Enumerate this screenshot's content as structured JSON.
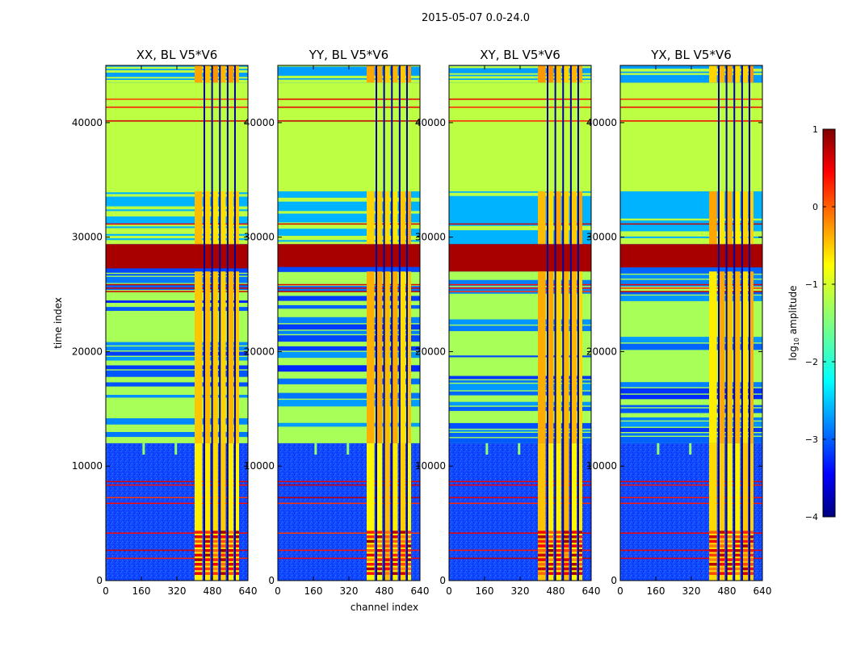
{
  "chart_data": {
    "type": "heatmap",
    "suptitle": "2015-05-07 0.0-24.0",
    "xlabel": "channel index",
    "ylabel": "time index",
    "xlim": [
      0,
      640
    ],
    "ylim": [
      0,
      45000
    ],
    "x_ticks": [
      0,
      160,
      320,
      480,
      640
    ],
    "x_tick_labels": [
      "0",
      "160",
      "320",
      "480",
      "640"
    ],
    "y_ticks": [
      0,
      10000,
      20000,
      30000,
      40000
    ],
    "y_tick_labels": [
      "0",
      "10000",
      "20000",
      "30000",
      "40000"
    ],
    "colormap": "jet",
    "colorbar": {
      "label": "log10 amplitude",
      "range": [
        -4,
        1
      ],
      "ticks": [
        1,
        0,
        -1,
        -2,
        -3,
        -4
      ],
      "tick_labels": [
        "1",
        "0",
        "−1",
        "−2",
        "−3",
        "−4"
      ]
    },
    "panels": [
      {
        "title": "XX, BL V5*V6"
      },
      {
        "title": "YY, BL V5*V6"
      },
      {
        "title": "XY, BL V5*V6"
      },
      {
        "title": "YX, BL V5*V6"
      }
    ],
    "intensity_regions": [
      {
        "t_start": 0,
        "t_end": 12000,
        "ch_start": 0,
        "ch_end": 640,
        "level": -3.0,
        "note": "low noise floor"
      },
      {
        "t_start": 12000,
        "t_end": 27000,
        "ch_start": 0,
        "ch_end": 640,
        "level": -1.3,
        "note": "striped flagged rows"
      },
      {
        "t_start": 27000,
        "t_end": 29400,
        "ch_start": 0,
        "ch_end": 640,
        "level": 0.8,
        "note": "strong saturated band"
      },
      {
        "t_start": 29400,
        "t_end": 34000,
        "ch_start": 0,
        "ch_end": 640,
        "level": -2.5
      },
      {
        "t_start": 34000,
        "t_end": 43500,
        "ch_start": 0,
        "ch_end": 640,
        "level": -1.2,
        "note": "uniform flagged block"
      },
      {
        "t_start": 43500,
        "t_end": 45000,
        "ch_start": 0,
        "ch_end": 640,
        "level": -2.6
      },
      {
        "t_start": 0,
        "t_end": 45000,
        "ch_start": 400,
        "ch_end": 600,
        "level": -0.8,
        "note": "bright vertical channel bands"
      },
      {
        "t_start": 0,
        "t_end": 4000,
        "ch_start": 400,
        "ch_end": 600,
        "level": 0.2,
        "note": "hot spots at low time index"
      }
    ]
  }
}
